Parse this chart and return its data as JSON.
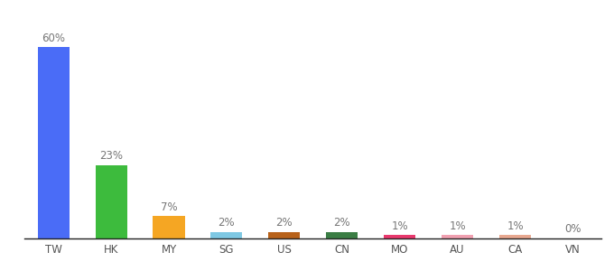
{
  "categories": [
    "TW",
    "HK",
    "MY",
    "SG",
    "US",
    "CN",
    "MO",
    "AU",
    "CA",
    "VN"
  ],
  "values": [
    60,
    23,
    7,
    2,
    2,
    2,
    1,
    1,
    1,
    0
  ],
  "labels": [
    "60%",
    "23%",
    "7%",
    "2%",
    "2%",
    "2%",
    "1%",
    "1%",
    "1%",
    "0%"
  ],
  "bar_colors": [
    "#4a6cf7",
    "#3dbb3d",
    "#f5a623",
    "#7ec8e3",
    "#b8621a",
    "#3a7d44",
    "#e8386d",
    "#f0a0b0",
    "#e8a890",
    "#d0d0d0"
  ],
  "background_color": "#ffffff",
  "ylim": [
    0,
    68
  ],
  "label_fontsize": 8.5,
  "tick_fontsize": 8.5,
  "bar_width": 0.55
}
